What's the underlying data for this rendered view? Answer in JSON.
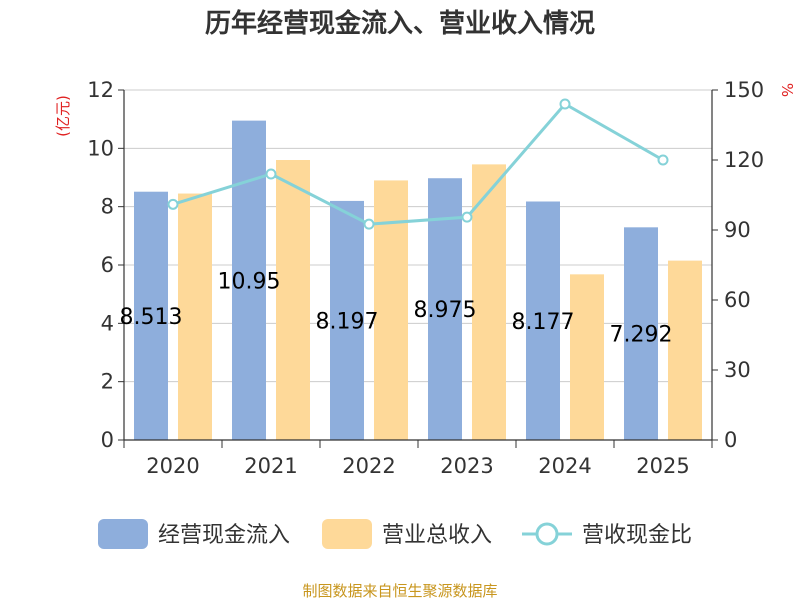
{
  "chart_data": {
    "type": "bar",
    "title": "历年经营现金流入、营业收入情况",
    "categories": [
      "2020",
      "2021",
      "2022",
      "2023",
      "2024",
      "2025"
    ],
    "series": [
      {
        "name": "经营现金流入",
        "type": "bar",
        "axis": "left",
        "color": "#8eaedc",
        "values": [
          8.513,
          10.95,
          8.197,
          8.975,
          8.177,
          7.292
        ]
      },
      {
        "name": "营业总收入",
        "type": "bar",
        "axis": "left",
        "color": "#fed999",
        "values": [
          8.45,
          9.6,
          8.9,
          9.45,
          5.68,
          6.15
        ]
      },
      {
        "name": "营收现金比",
        "type": "line",
        "axis": "right",
        "color": "#85d2d8",
        "values": [
          101,
          114,
          92.5,
          95.5,
          144,
          120
        ]
      }
    ],
    "data_labels": [
      "8.513",
      "10.95",
      "8.197",
      "8.975",
      "8.177",
      "7.292"
    ],
    "y_left": {
      "label": "(亿元)",
      "min": 0,
      "max": 12,
      "ticks": [
        "0",
        "2",
        "4",
        "6",
        "8",
        "10",
        "12"
      ]
    },
    "y_right": {
      "label": "%",
      "min": 0,
      "max": 150,
      "ticks": [
        "0",
        "30",
        "60",
        "90",
        "120",
        "150"
      ]
    },
    "grid": true,
    "legend_position": "bottom"
  },
  "source_note": "制图数据来自恒生聚源数据库"
}
